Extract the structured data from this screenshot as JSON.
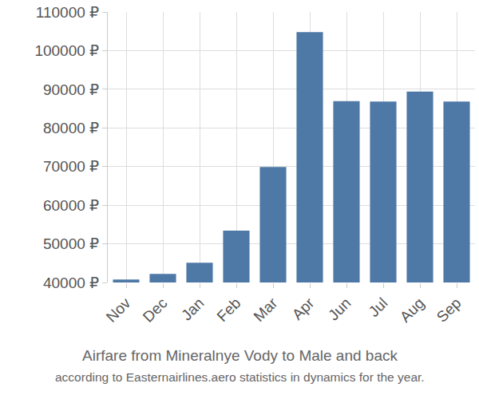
{
  "chart_data": {
    "type": "bar",
    "title": "Airfare from Mineralnye Vody to Male and back",
    "subtitle": "according to Easternairlines.aero statistics in dynamics for the year.",
    "categories": [
      "Nov",
      "Dec",
      "Jan",
      "Feb",
      "Mar",
      "Apr",
      "Jun",
      "Jul",
      "Aug",
      "Sep"
    ],
    "values": [
      40800,
      42200,
      45100,
      53400,
      69900,
      104800,
      86900,
      86800,
      89400,
      86800
    ],
    "color": "#4e79a7",
    "ylim": [
      40000,
      110000
    ],
    "yticks": [
      {
        "value": 40000,
        "label": "40000 ₽"
      },
      {
        "value": 50000,
        "label": "50000 ₽"
      },
      {
        "value": 60000,
        "label": "60000 ₽"
      },
      {
        "value": 70000,
        "label": "70000 ₽"
      },
      {
        "value": 80000,
        "label": "80000 ₽"
      },
      {
        "value": 90000,
        "label": "90000 ₽"
      },
      {
        "value": 100000,
        "label": "100000 ₽"
      },
      {
        "value": 110000,
        "label": "110000 ₽"
      }
    ],
    "grid": true
  }
}
